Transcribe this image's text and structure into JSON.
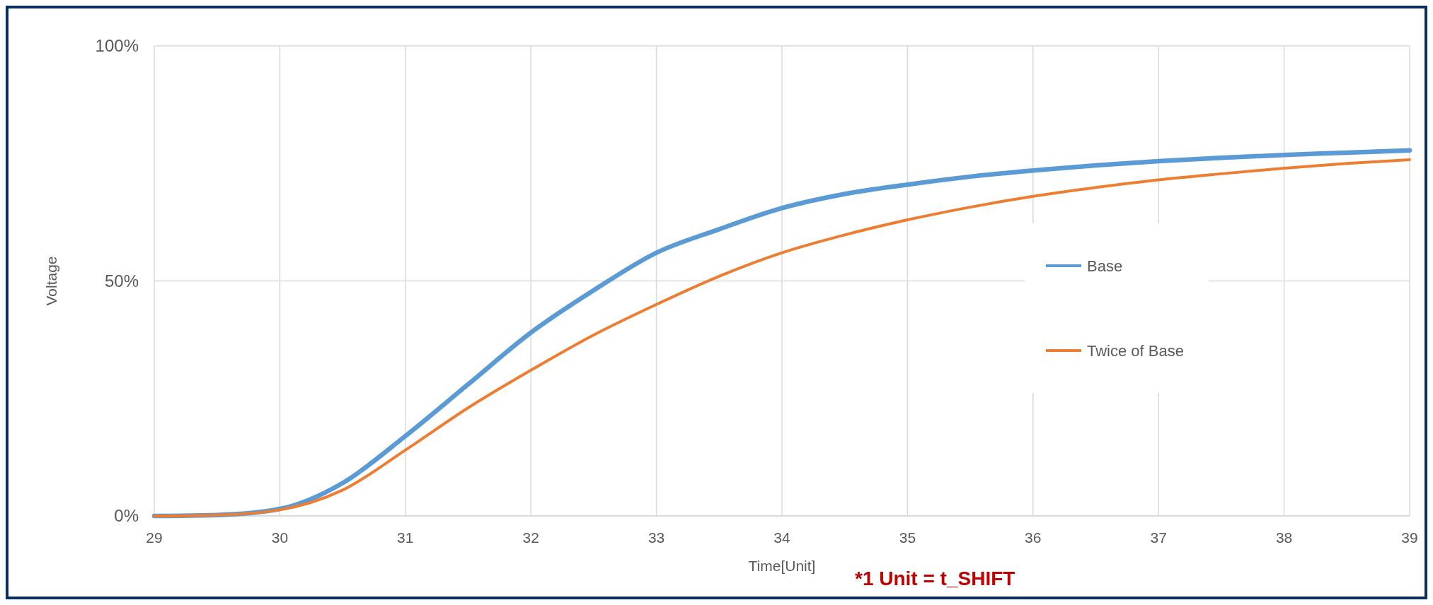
{
  "chart_data": {
    "type": "line",
    "xlabel": "Time[Unit]",
    "ylabel": "Voltage",
    "x": [
      29,
      29.5,
      30,
      30.5,
      31,
      31.5,
      32,
      32.5,
      33,
      33.5,
      34,
      34.5,
      35,
      35.5,
      36,
      36.5,
      37,
      37.5,
      38,
      38.5,
      39
    ],
    "series": [
      {
        "name": "Base",
        "color": "#5b9bd5",
        "values": [
          0,
          0.2,
          1.5,
          7,
          17,
          28,
          39,
          48,
          56,
          61,
          65.5,
          68.5,
          70.5,
          72.2,
          73.5,
          74.6,
          75.5,
          76.2,
          76.8,
          77.3,
          77.8
        ]
      },
      {
        "name": "Twice of Base",
        "color": "#ed7d31",
        "values": [
          0,
          0.2,
          1.3,
          5.5,
          14,
          23,
          31,
          38.5,
          45,
          51,
          56,
          59.8,
          63,
          65.7,
          68,
          69.9,
          71.5,
          72.8,
          74,
          75,
          75.8
        ]
      }
    ],
    "xlim": [
      29,
      39
    ],
    "xticks": [
      29,
      30,
      31,
      32,
      33,
      34,
      35,
      36,
      37,
      38,
      39
    ],
    "ylim": [
      0,
      100
    ],
    "yticks": [
      {
        "value": 0,
        "label": "0%"
      },
      {
        "value": 50,
        "label": "50%"
      },
      {
        "value": 100,
        "label": "100%"
      }
    ],
    "grid": true,
    "legend": "right",
    "marker": "none",
    "line_style": "solid",
    "annotations": [
      "*1 Unit = t_SHIFT"
    ]
  }
}
